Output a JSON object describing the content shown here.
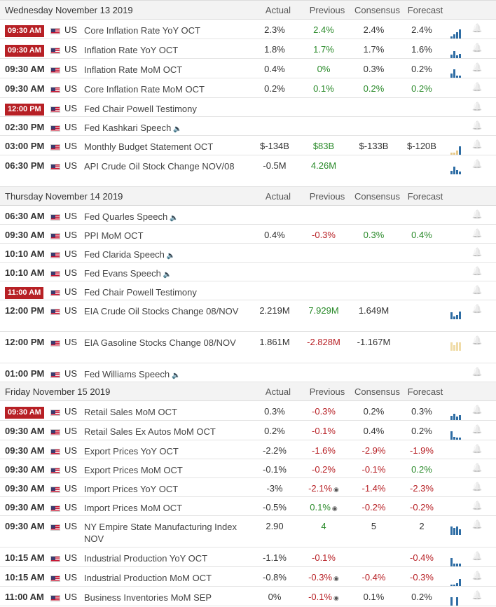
{
  "columns": {
    "actual": "Actual",
    "previous": "Previous",
    "consensus": "Consensus",
    "forecast": "Forecast"
  },
  "days": [
    {
      "date": "Wednesday November 13 2019",
      "events": [
        {
          "time": "09:30 AM",
          "badge": true,
          "country": "US",
          "event": "Core Inflation Rate YoY OCT",
          "actual": "2.3%",
          "previous": "2.4%",
          "previous_color": "green",
          "consensus": "2.4%",
          "forecast": "2.4%",
          "chart": [
            3,
            6,
            9,
            13
          ],
          "chart_color": "#2e6da4",
          "height": 28
        },
        {
          "time": "09:30 AM",
          "badge": true,
          "country": "US",
          "event": "Inflation Rate YoY OCT",
          "actual": "1.8%",
          "previous": "1.7%",
          "previous_color": "green",
          "consensus": "1.7%",
          "forecast": "1.6%",
          "chart": [
            5,
            10,
            4,
            6
          ],
          "chart_color": "#2e6da4",
          "height": 28
        },
        {
          "time": "09:30 AM",
          "badge": false,
          "country": "US",
          "event": "Inflation Rate MoM OCT",
          "actual": "0.4%",
          "previous": "0%",
          "previous_color": "green",
          "consensus": "0.3%",
          "forecast": "0.2%",
          "chart": [
            6,
            12,
            3,
            3
          ],
          "chart_color": "#2e6da4",
          "height": 28
        },
        {
          "time": "09:30 AM",
          "badge": false,
          "country": "US",
          "event": "Core Inflation Rate MoM OCT",
          "actual": "0.2%",
          "previous": "0.1%",
          "previous_color": "green",
          "consensus": "0.2%",
          "consensus_color": "green",
          "forecast": "0.2%",
          "forecast_color": "green",
          "chart": [],
          "height": 28
        },
        {
          "time": "12:00 PM",
          "badge": true,
          "country": "US",
          "event": "Fed Chair Powell Testimony",
          "chart": [],
          "height": 27
        },
        {
          "time": "02:30 PM",
          "badge": false,
          "country": "US",
          "event": "Fed Kashkari Speech",
          "speaker": true,
          "chart": [],
          "height": 27
        },
        {
          "time": "03:00 PM",
          "badge": false,
          "country": "US",
          "event": "Monthly Budget Statement OCT",
          "actual": "$-134B",
          "previous": "$83B",
          "previous_color": "green",
          "consensus": "$-133B",
          "forecast": "$-120B",
          "chart": [
            3,
            3,
            6,
            12
          ],
          "chart_color": "#e6c98a",
          "chart_last": "#2e6da4",
          "height": 28
        },
        {
          "time": "06:30 PM",
          "badge": false,
          "country": "US",
          "event": "API Crude Oil Stock Change NOV/08",
          "actual": "-0.5M",
          "previous": "4.26M",
          "previous_color": "green",
          "chart": [
            5,
            11,
            6,
            4
          ],
          "chart_color": "#2e6da4",
          "height": 45
        }
      ]
    },
    {
      "date": "Thursday November 14 2019",
      "events": [
        {
          "time": "06:30 AM",
          "badge": false,
          "country": "US",
          "event": "Fed Quarles Speech",
          "speaker": true,
          "chart": [],
          "height": 27
        },
        {
          "time": "09:30 AM",
          "badge": false,
          "country": "US",
          "event": "PPI MoM OCT",
          "actual": "0.4%",
          "previous": "-0.3%",
          "previous_color": "red",
          "consensus": "0.3%",
          "consensus_color": "green",
          "forecast": "0.4%",
          "forecast_color": "green",
          "chart": [],
          "height": 27
        },
        {
          "time": "10:10 AM",
          "badge": false,
          "country": "US",
          "event": "Fed Clarida Speech",
          "speaker": true,
          "chart": [],
          "height": 27
        },
        {
          "time": "10:10 AM",
          "badge": false,
          "country": "US",
          "event": "Fed Evans Speech",
          "speaker": true,
          "chart": [],
          "height": 27
        },
        {
          "time": "11:00 AM",
          "badge": true,
          "country": "US",
          "event": "Fed Chair Powell Testimony",
          "chart": [],
          "height": 27
        },
        {
          "time": "12:00 PM",
          "badge": false,
          "country": "US",
          "event": "EIA Crude Oil Stocks Change 08/NOV",
          "actual": "2.219M",
          "previous": "7.929M",
          "previous_color": "green",
          "consensus": "1.649M",
          "chart": [
            10,
            4,
            6,
            11
          ],
          "chart_color": "#2e6da4",
          "height": 45
        },
        {
          "time": "12:00 PM",
          "badge": false,
          "country": "US",
          "event": "EIA Gasoline Stocks Change 08/NOV",
          "actual": "1.861M",
          "previous": "-2.828M",
          "previous_color": "red",
          "consensus": "-1.167M",
          "chart": [
            12,
            8,
            12,
            12
          ],
          "chart_color": "#f0dca8",
          "height": 45
        },
        {
          "time": "01:00 PM",
          "badge": false,
          "country": "US",
          "event": "Fed Williams Speech",
          "speaker": true,
          "chart": [],
          "height": 27
        }
      ]
    },
    {
      "date": "Friday November 15 2019",
      "events": [
        {
          "time": "09:30 AM",
          "badge": true,
          "country": "US",
          "event": "Retail Sales MoM OCT",
          "actual": "0.3%",
          "previous": "-0.3%",
          "previous_color": "red",
          "consensus": "0.2%",
          "forecast": "0.3%",
          "chart": [
            6,
            9,
            5,
            7
          ],
          "chart_color": "#2e6da4",
          "height": 28
        },
        {
          "time": "09:30 AM",
          "badge": false,
          "country": "US",
          "event": "Retail Sales Ex Autos MoM OCT",
          "actual": "0.2%",
          "previous": "-0.1%",
          "previous_color": "red",
          "consensus": "0.4%",
          "forecast": "0.2%",
          "chart": [
            12,
            4,
            3,
            3
          ],
          "chart_color": "#2e6da4",
          "height": 28
        },
        {
          "time": "09:30 AM",
          "badge": false,
          "country": "US",
          "event": "Export Prices YoY OCT",
          "actual": "-2.2%",
          "previous": "-1.6%",
          "previous_color": "red",
          "consensus": "-2.9%",
          "consensus_color": "red",
          "forecast": "-1.9%",
          "forecast_color": "red",
          "chart": [],
          "height": 27
        },
        {
          "time": "09:30 AM",
          "badge": false,
          "country": "US",
          "event": "Export Prices MoM OCT",
          "actual": "-0.1%",
          "previous": "-0.2%",
          "previous_color": "red",
          "consensus": "-0.1%",
          "consensus_color": "red",
          "forecast": "0.2%",
          "forecast_color": "green",
          "chart": [],
          "height": 27
        },
        {
          "time": "09:30 AM",
          "badge": false,
          "country": "US",
          "event": "Import Prices YoY OCT",
          "actual": "-3%",
          "previous": "-2.1%",
          "previous_color": "red",
          "previous_revised": true,
          "consensus": "-1.4%",
          "consensus_color": "red",
          "forecast": "-2.3%",
          "forecast_color": "red",
          "chart": [],
          "height": 27
        },
        {
          "time": "09:30 AM",
          "badge": false,
          "country": "US",
          "event": "Import Prices MoM OCT",
          "actual": "-0.5%",
          "previous": "0.1%",
          "previous_color": "green",
          "previous_revised": true,
          "consensus": "-0.2%",
          "consensus_color": "red",
          "forecast": "-0.2%",
          "forecast_color": "red",
          "chart": [],
          "height": 27
        },
        {
          "time": "09:30 AM",
          "badge": false,
          "country": "US",
          "event": "NY Empire State Manufacturing Index NOV",
          "actual": "2.90",
          "previous": "4",
          "previous_color": "green",
          "consensus": "5",
          "forecast": "2",
          "chart": [
            12,
            10,
            12,
            8
          ],
          "chart_color": "#2e6da4",
          "height": 45
        },
        {
          "time": "10:15 AM",
          "badge": false,
          "country": "US",
          "event": "Industrial Production YoY OCT",
          "actual": "-1.1%",
          "previous": "-0.1%",
          "previous_color": "red",
          "forecast": "-0.4%",
          "forecast_color": "red",
          "chart": [
            12,
            4,
            4,
            4
          ],
          "chart_color": "#2e6da4",
          "height": 28
        },
        {
          "time": "10:15 AM",
          "badge": false,
          "country": "US",
          "event": "Industrial Production MoM OCT",
          "actual": "-0.8%",
          "previous": "-0.3%",
          "previous_color": "red",
          "previous_revised": true,
          "consensus": "-0.4%",
          "consensus_color": "red",
          "forecast": "-0.3%",
          "forecast_color": "red",
          "chart": [
            2,
            2,
            4,
            10
          ],
          "chart_color": "#2e6da4",
          "height": 28
        },
        {
          "time": "11:00 AM",
          "badge": false,
          "country": "US",
          "event": "Business Inventories MoM SEP",
          "actual": "0%",
          "previous": "-0.1%",
          "previous_color": "red",
          "previous_revised": true,
          "consensus": "0.1%",
          "forecast": "0.2%",
          "chart": [
            12,
            0,
            12,
            0
          ],
          "chart_color": "#2e6da4",
          "height": 28
        }
      ]
    }
  ]
}
